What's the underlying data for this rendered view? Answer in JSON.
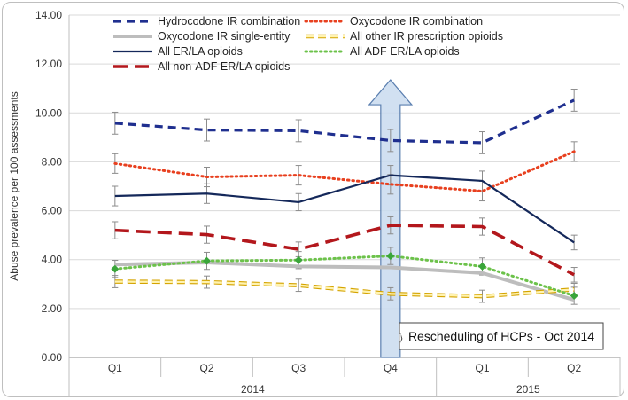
{
  "chart_data": {
    "type": "line",
    "title": "",
    "ylabel": "Abuse prevalence per 100 assessments",
    "ylim": [
      0,
      14
    ],
    "yticks": [
      "0.00",
      "2.00",
      "4.00",
      "6.00",
      "8.00",
      "10.00",
      "12.00",
      "14.00"
    ],
    "grid": true,
    "categories": [
      "Q1",
      "Q2",
      "Q3",
      "Q4",
      "Q1",
      "Q2"
    ],
    "year_groups": [
      {
        "label": "2014",
        "span": [
          0,
          3
        ]
      },
      {
        "label": "2015",
        "span": [
          4,
          5
        ]
      }
    ],
    "series": [
      {
        "name": "Hydrocodone IR combination",
        "color": "#1f2f8f",
        "style": "dashed-heavy",
        "values": [
          9.58,
          9.3,
          9.27,
          8.87,
          8.78,
          10.52
        ],
        "err": [
          0.45,
          0.45,
          0.45,
          0.45,
          0.45,
          0.45
        ],
        "error_bars": true
      },
      {
        "name": "Oxycodone IR combination",
        "color": "#e8401f",
        "style": "dotted",
        "values": [
          7.93,
          7.38,
          7.45,
          7.08,
          6.8,
          8.42
        ],
        "err": [
          0.4,
          0.4,
          0.4,
          0.4,
          0.4,
          0.4
        ],
        "error_bars": true
      },
      {
        "name": "Oxycodone IR single-entity",
        "color": "#bdbdbd",
        "style": "solid-heavy",
        "values": [
          3.8,
          3.88,
          3.72,
          3.68,
          3.45,
          2.35
        ],
        "err": [
          0,
          0,
          0,
          0,
          0,
          0
        ],
        "error_bars": false
      },
      {
        "name": "All other IR prescription opioids",
        "color": "#f2c311",
        "style": "dashed-outline",
        "values": [
          3.1,
          3.08,
          2.95,
          2.6,
          2.5,
          2.78
        ],
        "err": [
          0.25,
          0.25,
          0.25,
          0.25,
          0.25,
          0.25
        ],
        "error_bars": true
      },
      {
        "name": "All ER/LA opioids",
        "color": "#14285a",
        "style": "solid",
        "values": [
          6.6,
          6.7,
          6.35,
          7.45,
          7.22,
          4.7
        ],
        "err": [
          0.4,
          0.4,
          0.35,
          0.4,
          0.4,
          0.3
        ],
        "error_bars": true
      },
      {
        "name": "All ADF ER/LA opioids",
        "color": "#6cc24a",
        "style": "dotted-marker",
        "values": [
          3.62,
          3.95,
          3.98,
          4.15,
          3.72,
          2.52
        ],
        "err": [
          0.35,
          0.35,
          0.35,
          0.35,
          0.35,
          0.35
        ],
        "error_bars": true
      },
      {
        "name": "All non-ADF ER/LA opioids",
        "color": "#b3171c",
        "style": "dashed-long",
        "values": [
          5.2,
          5.02,
          4.42,
          5.4,
          5.35,
          3.38
        ],
        "err": [
          0.35,
          0.35,
          0.3,
          0.35,
          0.35,
          0.3
        ],
        "error_bars": true
      }
    ],
    "legend_position": "top",
    "annotation": {
      "text": "Rescheduling of HCPs - Oct 2014",
      "category_index": 3,
      "arrow_from": 0.0,
      "arrow_to": 11.35
    }
  }
}
